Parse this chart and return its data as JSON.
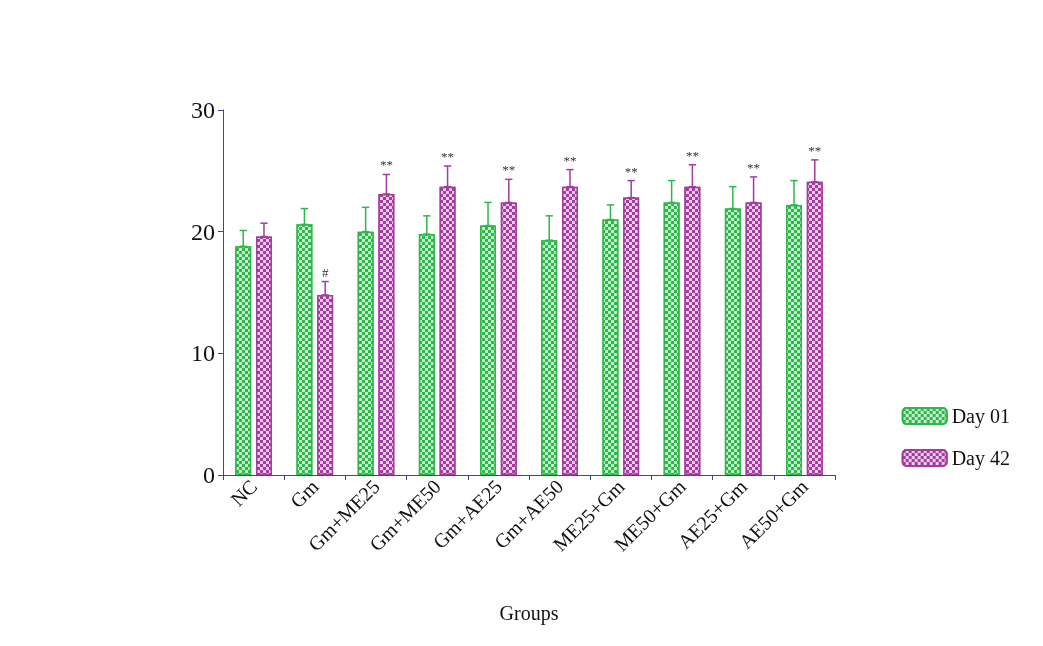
{
  "chart_data": {
    "type": "bar",
    "xlabel": "Groups",
    "categories": [
      "NC",
      "Gm",
      "Gm+ME25",
      "Gm+ME50",
      "Gm+AE25",
      "Gm+AE50",
      "ME25+Gm",
      "ME50+Gm",
      "AE25+Gm",
      "AE50+Gm"
    ],
    "series": [
      {
        "name": "Day 01",
        "color": "#2db84a",
        "values": [
          18.8,
          20.6,
          20.0,
          19.8,
          20.5,
          19.3,
          21.0,
          22.4,
          21.9,
          22.2
        ],
        "errors": [
          [
            18.8,
            20.1
          ],
          [
            20.6,
            21.9
          ],
          [
            20.0,
            22.0
          ],
          [
            19.8,
            21.3
          ],
          [
            20.5,
            22.4
          ],
          [
            19.3,
            21.3
          ],
          [
            21.0,
            22.2
          ],
          [
            22.4,
            24.2
          ],
          [
            21.9,
            23.7
          ],
          [
            22.2,
            24.2
          ]
        ]
      },
      {
        "name": "Day 42",
        "color": "#a43ca0",
        "values": [
          19.6,
          14.8,
          23.1,
          23.7,
          22.4,
          23.7,
          22.8,
          23.7,
          22.4,
          24.1
        ],
        "errors": [
          [
            19.6,
            20.7
          ],
          [
            14.8,
            15.9
          ],
          [
            23.1,
            24.7
          ],
          [
            23.7,
            25.4
          ],
          [
            22.4,
            24.3
          ],
          [
            23.7,
            25.1
          ],
          [
            22.8,
            24.2
          ],
          [
            23.7,
            25.5
          ],
          [
            22.4,
            24.5
          ],
          [
            24.1,
            25.9
          ]
        ]
      }
    ],
    "annotations": [
      {
        "text": "#",
        "x": "Gm",
        "y": 14.8
      },
      {
        "text": "**",
        "x": "Gm+ME25",
        "y": 23.1
      },
      {
        "text": "**",
        "x": "Gm+ME50",
        "y": 23.7
      },
      {
        "text": "**",
        "x": "Gm+AE25",
        "y": 22.4
      },
      {
        "text": "**",
        "x": "Gm+AE50",
        "y": 23.7
      },
      {
        "text": "**",
        "x": "ME25+Gm",
        "y": 22.8
      },
      {
        "text": "**",
        "x": "ME50+Gm",
        "y": 23.7
      },
      {
        "text": "**",
        "x": "AE25+Gm",
        "y": 22.4
      },
      {
        "text": "**",
        "x": "AE50+Gm",
        "y": 24.1
      }
    ],
    "ylim": [
      0,
      30
    ],
    "yticks": [
      0,
      10,
      20,
      30
    ],
    "grid": false,
    "legend": "right"
  }
}
